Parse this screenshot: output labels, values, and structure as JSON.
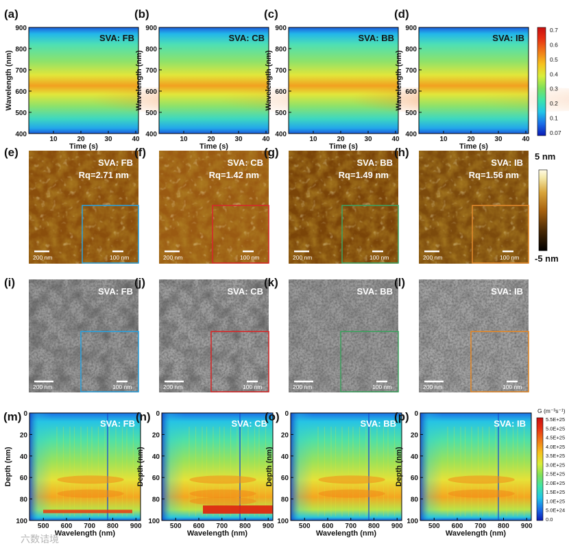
{
  "figure": {
    "colors": {
      "spectral": [
        "#0a1ab4",
        "#1a6ee8",
        "#22c6e8",
        "#3ee4a8",
        "#7ee05a",
        "#d8ee3a",
        "#f6c21e",
        "#f07818",
        "#e62e12",
        "#c81010"
      ],
      "afm": [
        "#000000",
        "#4a2a06",
        "#a8620e",
        "#d8a43a",
        "#f4e8a8",
        "#ffffff"
      ],
      "inset_borders": [
        "#2f9fd8",
        "#d42a2a",
        "#3f9f5f",
        "#e0882c"
      ]
    },
    "row1": {
      "panels": [
        {
          "label": "(a)",
          "title": "SVA: FB"
        },
        {
          "label": "(b)",
          "title": "SVA: CB"
        },
        {
          "label": "(c)",
          "title": "SVA: BB"
        },
        {
          "label": "(d)",
          "title": "SVA: IB"
        }
      ],
      "ylabel": "Wavelength (nm)",
      "yticks": [
        "900",
        "800",
        "700",
        "600",
        "500",
        "400"
      ],
      "xlabel": "Time (s)",
      "xticks": [
        "10",
        "20",
        "30",
        "40"
      ],
      "colorbar_ticks": [
        "0.7",
        "0.6",
        "0.5",
        "0.4",
        "0.3",
        "0.2",
        "0.1",
        "0.07"
      ]
    },
    "row2": {
      "panels": [
        {
          "label": "(e)",
          "title": "SVA: FB",
          "rq": "Rq=2.71 nm"
        },
        {
          "label": "(f)",
          "title": "SVA: CB",
          "rq": "Rq=1.42 nm"
        },
        {
          "label": "(g)",
          "title": "SVA: BB",
          "rq": "Rq=1.49 nm"
        },
        {
          "label": "(h)",
          "title": "SVA: IB",
          "rq": "Rq=1.56 nm"
        }
      ],
      "scale_main": "200 nm",
      "scale_inset": "100 nm",
      "colorbar_top": "5 nm",
      "colorbar_bottom": "-5 nm"
    },
    "row3": {
      "panels": [
        {
          "label": "(i)",
          "title": "SVA: FB"
        },
        {
          "label": "(j)",
          "title": "SVA: CB"
        },
        {
          "label": "(k)",
          "title": "SVA: BB"
        },
        {
          "label": "(l)",
          "title": "SVA: IB"
        }
      ],
      "scale_main": "200 nm",
      "scale_inset": "100 nm"
    },
    "row4": {
      "panels": [
        {
          "label": "(m)",
          "title": "SVA: FB"
        },
        {
          "label": "(n)",
          "title": "SVA: CB"
        },
        {
          "label": "(o)",
          "title": "SVA: BB"
        },
        {
          "label": "(p)",
          "title": "SVA: IB"
        }
      ],
      "ylabel": "Depth (nm)",
      "yticks": [
        "0",
        "20",
        "40",
        "60",
        "80",
        "100"
      ],
      "xlabel": "Wavelength (nm)",
      "xticks": [
        "500",
        "600",
        "700",
        "800",
        "900"
      ],
      "colorbar_title": "G (m⁻³s⁻¹)",
      "colorbar_ticks": [
        "5.5E+25",
        "5.0E+25",
        "4.5E+25",
        "4.0E+25",
        "3.5E+25",
        "3.0E+25",
        "2.5E+25",
        "2.0E+25",
        "1.5E+25",
        "1.0E+25",
        "5.0E+24",
        "0.0"
      ]
    },
    "watermark": "六数诘境"
  }
}
